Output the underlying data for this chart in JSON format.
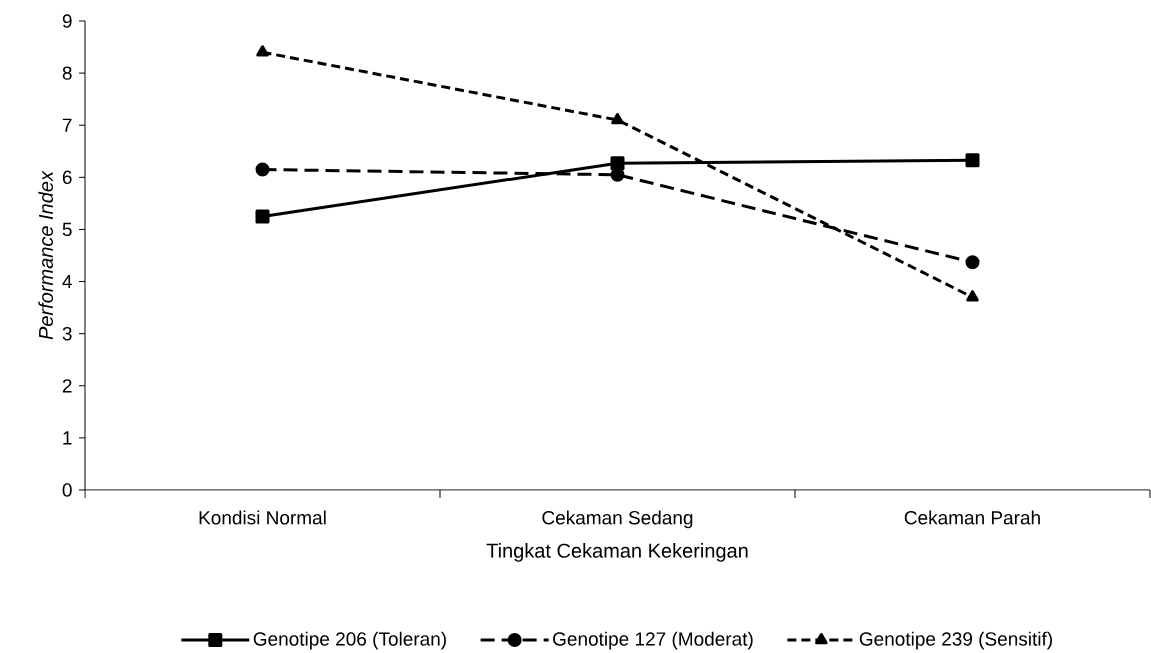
{
  "chart_data": {
    "type": "line",
    "xlabel": "Tingkat Cekaman Kekeringan",
    "ylabel": "Performance Index",
    "categories": [
      "Kondisi Normal",
      "Cekaman Sedang",
      "Cekaman Parah"
    ],
    "series": [
      {
        "name": "Genotipe 206 (Toleran)",
        "color": "#000000",
        "values": [
          5.25,
          6.27,
          6.33
        ],
        "marker": "square",
        "line_style": "solid"
      },
      {
        "name": "Genotipe 127 (Moderat)",
        "color": "#000000",
        "values": [
          6.15,
          6.05,
          4.37
        ],
        "marker": "circle",
        "line_style": "dashed"
      },
      {
        "name": "Genotipe 239 (Sensitif)",
        "color": "#000000",
        "values": [
          8.4,
          7.1,
          3.7
        ],
        "marker": "triangle",
        "line_style": "dashed"
      }
    ],
    "ylim": [
      0,
      9
    ],
    "yticks": [
      0,
      1,
      2,
      3,
      4,
      5,
      6,
      7,
      8,
      9
    ],
    "grid": false,
    "legend": "bottom"
  }
}
